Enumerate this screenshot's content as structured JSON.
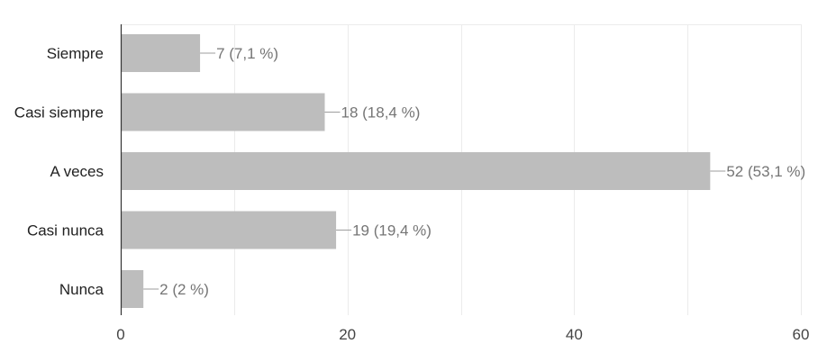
{
  "chart_data": {
    "type": "bar",
    "orientation": "horizontal",
    "categories": [
      "Siempre",
      "Casi siempre",
      "A veces",
      "Casi nunca",
      "Nunca"
    ],
    "values": [
      7,
      18,
      52,
      19,
      2
    ],
    "data_labels": [
      "7 (7,1 %)",
      "18 (18,4 %)",
      "52 (53,1 %)",
      "19 (19,4 %)",
      "2 (2 %)"
    ],
    "xlim": [
      0,
      60
    ],
    "x_ticks": [
      0,
      20,
      40,
      60
    ],
    "x_tick_labels": [
      "0",
      "20",
      "40",
      "60"
    ],
    "grid": true,
    "title": "",
    "xlabel": "",
    "ylabel": "",
    "colors": {
      "bar": "#bdbdbd",
      "grid": "#ebebeb",
      "axis": "#333333",
      "leader": "#9e9e9e",
      "data_label": "#757575"
    }
  }
}
